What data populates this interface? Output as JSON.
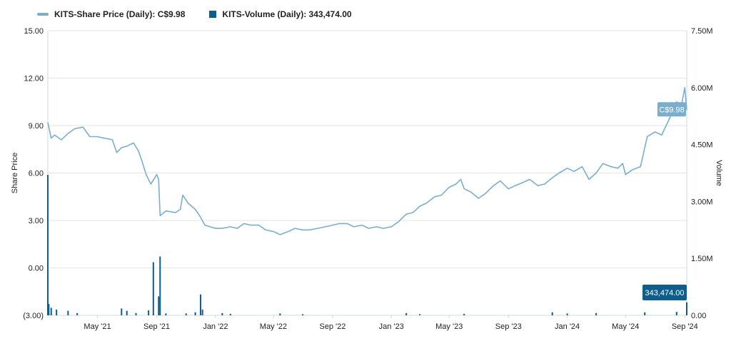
{
  "legend": {
    "price_label": "KITS-Share Price (Daily): C$9.98",
    "volume_label": "KITS-Volume (Daily): 343,474.00"
  },
  "colors": {
    "price": "#79aecd",
    "volume": "#0e5d8c",
    "grid": "#e6e6e6"
  },
  "chart_data": {
    "type": "line",
    "x_axis": {
      "ticks": [
        "May '21",
        "Sep '21",
        "Jan '22",
        "May '22",
        "Sep '22",
        "Jan '23",
        "May '23",
        "Sep '23",
        "Jan '24",
        "May '24",
        "Sep '24"
      ]
    },
    "y_left": {
      "label": "Share Price",
      "min": -3.0,
      "max": 15.0,
      "ticks": [
        "15.00",
        "12.00",
        "9.00",
        "6.00",
        "3.00",
        "0.00",
        "(3.00)"
      ]
    },
    "y_right": {
      "label": "Volume",
      "min": 0,
      "max": 7500000,
      "ticks": [
        "7.50M",
        "6.00M",
        "4.50M",
        "3.00M",
        "1.50M",
        "0.00"
      ]
    },
    "grid": true,
    "series": [
      {
        "name": "KITS-Share Price (Daily)",
        "axis": "left",
        "points": [
          [
            "2021-01-18",
            9.2
          ],
          [
            "2021-01-25",
            8.2
          ],
          [
            "2021-02-01",
            8.4
          ],
          [
            "2021-02-15",
            8.1
          ],
          [
            "2021-03-01",
            8.5
          ],
          [
            "2021-03-15",
            8.8
          ],
          [
            "2021-04-01",
            8.9
          ],
          [
            "2021-04-15",
            8.3
          ],
          [
            "2021-05-01",
            8.3
          ],
          [
            "2021-05-15",
            8.2
          ],
          [
            "2021-06-01",
            8.1
          ],
          [
            "2021-06-10",
            7.3
          ],
          [
            "2021-06-20",
            7.6
          ],
          [
            "2021-07-01",
            7.7
          ],
          [
            "2021-07-15",
            7.9
          ],
          [
            "2021-07-25",
            7.4
          ],
          [
            "2021-08-01",
            6.8
          ],
          [
            "2021-08-10",
            5.9
          ],
          [
            "2021-08-20",
            5.3
          ],
          [
            "2021-09-01",
            5.9
          ],
          [
            "2021-09-05",
            5.6
          ],
          [
            "2021-09-08",
            3.3
          ],
          [
            "2021-09-20",
            3.6
          ],
          [
            "2021-10-10",
            3.5
          ],
          [
            "2021-10-20",
            3.7
          ],
          [
            "2021-10-25",
            4.6
          ],
          [
            "2021-11-05",
            4.1
          ],
          [
            "2021-11-20",
            3.7
          ],
          [
            "2021-12-01",
            3.2
          ],
          [
            "2021-12-10",
            2.7
          ],
          [
            "2022-01-01",
            2.5
          ],
          [
            "2022-01-15",
            2.5
          ],
          [
            "2022-02-01",
            2.6
          ],
          [
            "2022-02-15",
            2.5
          ],
          [
            "2022-03-01",
            2.8
          ],
          [
            "2022-03-15",
            2.7
          ],
          [
            "2022-04-01",
            2.7
          ],
          [
            "2022-04-15",
            2.4
          ],
          [
            "2022-05-01",
            2.3
          ],
          [
            "2022-05-15",
            2.1
          ],
          [
            "2022-06-01",
            2.3
          ],
          [
            "2022-06-15",
            2.5
          ],
          [
            "2022-07-01",
            2.4
          ],
          [
            "2022-07-15",
            2.4
          ],
          [
            "2022-08-01",
            2.5
          ],
          [
            "2022-09-01",
            2.7
          ],
          [
            "2022-09-15",
            2.8
          ],
          [
            "2022-10-01",
            2.8
          ],
          [
            "2022-10-15",
            2.6
          ],
          [
            "2022-11-01",
            2.7
          ],
          [
            "2022-11-15",
            2.5
          ],
          [
            "2022-12-01",
            2.6
          ],
          [
            "2022-12-15",
            2.5
          ],
          [
            "2023-01-01",
            2.6
          ],
          [
            "2023-01-15",
            2.9
          ],
          [
            "2023-02-01",
            3.4
          ],
          [
            "2023-02-15",
            3.5
          ],
          [
            "2023-03-01",
            3.9
          ],
          [
            "2023-03-15",
            4.1
          ],
          [
            "2023-04-01",
            4.5
          ],
          [
            "2023-04-15",
            4.6
          ],
          [
            "2023-05-01",
            5.1
          ],
          [
            "2023-05-15",
            5.3
          ],
          [
            "2023-05-25",
            5.6
          ],
          [
            "2023-06-01",
            5.0
          ],
          [
            "2023-06-15",
            4.8
          ],
          [
            "2023-07-01",
            4.4
          ],
          [
            "2023-07-15",
            4.7
          ],
          [
            "2023-08-01",
            5.2
          ],
          [
            "2023-08-15",
            5.5
          ],
          [
            "2023-09-01",
            5.0
          ],
          [
            "2023-09-15",
            5.2
          ],
          [
            "2023-10-01",
            5.4
          ],
          [
            "2023-10-15",
            5.6
          ],
          [
            "2023-11-01",
            5.2
          ],
          [
            "2023-11-15",
            5.3
          ],
          [
            "2023-12-01",
            5.7
          ],
          [
            "2023-12-15",
            6.0
          ],
          [
            "2024-01-01",
            6.3
          ],
          [
            "2024-01-15",
            6.1
          ],
          [
            "2024-02-01",
            6.4
          ],
          [
            "2024-02-15",
            5.6
          ],
          [
            "2024-03-01",
            6.0
          ],
          [
            "2024-03-15",
            6.6
          ],
          [
            "2024-04-01",
            6.4
          ],
          [
            "2024-04-15",
            6.3
          ],
          [
            "2024-04-25",
            6.6
          ],
          [
            "2024-05-01",
            5.9
          ],
          [
            "2024-05-15",
            6.2
          ],
          [
            "2024-06-01",
            6.4
          ],
          [
            "2024-06-15",
            8.3
          ],
          [
            "2024-07-01",
            8.6
          ],
          [
            "2024-07-15",
            8.4
          ],
          [
            "2024-08-01",
            9.5
          ],
          [
            "2024-08-15",
            10.5
          ],
          [
            "2024-08-25",
            10.3
          ],
          [
            "2024-09-01",
            11.4
          ],
          [
            "2024-09-05",
            9.98
          ]
        ]
      },
      {
        "name": "KITS-Volume (Daily)",
        "axis": "right",
        "points": [
          [
            "2021-01-18",
            3700000
          ],
          [
            "2021-01-20",
            300000
          ],
          [
            "2021-01-25",
            200000
          ],
          [
            "2021-02-05",
            150000
          ],
          [
            "2021-03-01",
            120000
          ],
          [
            "2021-03-20",
            60000
          ],
          [
            "2021-06-20",
            180000
          ],
          [
            "2021-07-01",
            120000
          ],
          [
            "2021-07-20",
            60000
          ],
          [
            "2021-08-15",
            130000
          ],
          [
            "2021-08-25",
            1400000
          ],
          [
            "2021-09-05",
            500000
          ],
          [
            "2021-09-08",
            1550000
          ],
          [
            "2021-09-20",
            50000
          ],
          [
            "2021-11-01",
            50000
          ],
          [
            "2021-11-20",
            80000
          ],
          [
            "2021-12-01",
            550000
          ],
          [
            "2021-12-05",
            150000
          ],
          [
            "2022-01-15",
            60000
          ],
          [
            "2022-02-01",
            40000
          ],
          [
            "2022-05-15",
            50000
          ],
          [
            "2022-07-01",
            30000
          ],
          [
            "2023-02-01",
            60000
          ],
          [
            "2023-03-01",
            30000
          ],
          [
            "2023-06-01",
            40000
          ],
          [
            "2023-12-01",
            80000
          ],
          [
            "2024-01-01",
            50000
          ],
          [
            "2024-03-01",
            60000
          ],
          [
            "2024-06-10",
            80000
          ],
          [
            "2024-08-15",
            90000
          ],
          [
            "2024-09-05",
            343474
          ]
        ]
      }
    ],
    "annotations": {
      "price_tag": "C$9.98",
      "volume_tag": "343,474.00"
    }
  }
}
